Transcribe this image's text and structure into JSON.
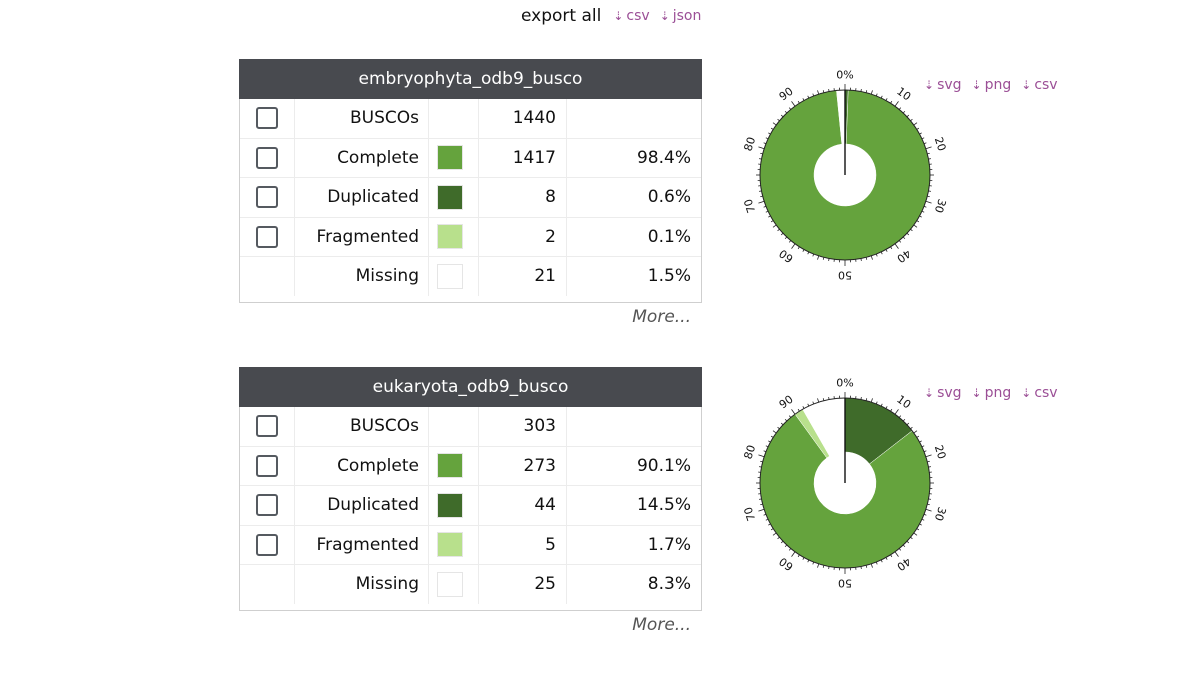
{
  "export_bar": {
    "title": "export all",
    "links": [
      "csv",
      "json"
    ]
  },
  "chart_link_labels": [
    "svg",
    "png",
    "csv"
  ],
  "more_label": "More...",
  "colors": {
    "complete": "#65a33d",
    "duplicated": "#3f6b2a",
    "fragmented": "#b8e08c",
    "missing": "#ffffff",
    "header_bg": "#484a4f",
    "link": "#9b4f96"
  },
  "panels": [
    {
      "title": "embryophyta_odb9_busco",
      "rows": [
        {
          "label": "BUSCOs",
          "count": "1440",
          "percent": "",
          "checkbox": true,
          "swatch": null
        },
        {
          "label": "Complete",
          "count": "1417",
          "percent": "98.4%",
          "checkbox": true,
          "swatch": "complete"
        },
        {
          "label": "Duplicated",
          "count": "8",
          "percent": "0.6%",
          "checkbox": true,
          "swatch": "duplicated"
        },
        {
          "label": "Fragmented",
          "count": "2",
          "percent": "0.1%",
          "checkbox": true,
          "swatch": "fragmented"
        },
        {
          "label": "Missing",
          "count": "21",
          "percent": "1.5%",
          "checkbox": false,
          "swatch": "missing"
        }
      ]
    },
    {
      "title": "eukaryota_odb9_busco",
      "rows": [
        {
          "label": "BUSCOs",
          "count": "303",
          "percent": "",
          "checkbox": true,
          "swatch": null
        },
        {
          "label": "Complete",
          "count": "273",
          "percent": "90.1%",
          "checkbox": true,
          "swatch": "complete"
        },
        {
          "label": "Duplicated",
          "count": "44",
          "percent": "14.5%",
          "checkbox": true,
          "swatch": "duplicated"
        },
        {
          "label": "Fragmented",
          "count": "5",
          "percent": "1.7%",
          "checkbox": true,
          "swatch": "fragmented"
        },
        {
          "label": "Missing",
          "count": "25",
          "percent": "8.3%",
          "checkbox": false,
          "swatch": "missing"
        }
      ]
    }
  ],
  "chart_data": [
    {
      "type": "pie",
      "variant": "donut",
      "axis_tick_labels": [
        "0%",
        "10",
        "20",
        "30",
        "40",
        "50",
        "60",
        "70",
        "80",
        "90"
      ],
      "segments": [
        {
          "name": "Duplicated",
          "value": 0.6,
          "color": "#3f6b2a"
        },
        {
          "name": "Complete (single)",
          "value": 97.8,
          "color": "#65a33d"
        },
        {
          "name": "Fragmented",
          "value": 0.1,
          "color": "#b8e08c"
        },
        {
          "name": "Missing",
          "value": 1.5,
          "color": "#ffffff"
        }
      ]
    },
    {
      "type": "pie",
      "variant": "donut",
      "axis_tick_labels": [
        "0%",
        "10",
        "20",
        "30",
        "40",
        "50",
        "60",
        "70",
        "80",
        "90"
      ],
      "segments": [
        {
          "name": "Duplicated",
          "value": 14.5,
          "color": "#3f6b2a"
        },
        {
          "name": "Complete (single)",
          "value": 75.6,
          "color": "#65a33d"
        },
        {
          "name": "Fragmented",
          "value": 1.7,
          "color": "#b8e08c"
        },
        {
          "name": "Missing",
          "value": 8.3,
          "color": "#ffffff"
        }
      ]
    }
  ]
}
